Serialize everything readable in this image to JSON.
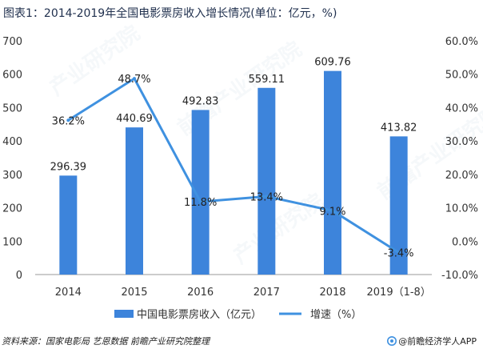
{
  "title": "图表1：2014-2019年全国电影票房收入增长情况(单位：亿元，%)",
  "source": "资料来源：国家电影局 艺恩数据 前瞻产业研究院整理",
  "brand": "@前瞻经济学人APP",
  "colors": {
    "bar": "#3d84db",
    "line": "#3f91e0",
    "axis": "#9a9a9a",
    "text": "#333333"
  },
  "chart_data": {
    "type": "bar",
    "categories": [
      "2014",
      "2015",
      "2016",
      "2017",
      "2018",
      "2019（1-8）"
    ],
    "series": [
      {
        "name": "中国电影票房收入（亿元）",
        "type": "bar",
        "axis": "left",
        "values": [
          296.39,
          440.69,
          492.83,
          559.11,
          609.76,
          413.82
        ],
        "labels": [
          "296.39",
          "440.69",
          "492.83",
          "559.11",
          "609.76",
          "413.82"
        ]
      },
      {
        "name": "增速（%）",
        "type": "line",
        "axis": "right",
        "values": [
          36.2,
          48.7,
          11.8,
          13.4,
          9.1,
          -3.4
        ],
        "labels": [
          "36.2%",
          "48.7%",
          "11.8%",
          "13.4%",
          "9.1%",
          "-3.4%"
        ]
      }
    ],
    "y_left": {
      "ylim": [
        0,
        700
      ],
      "ticks": [
        "0",
        "100",
        "200",
        "300",
        "400",
        "500",
        "600",
        "700"
      ]
    },
    "y_right": {
      "ylim": [
        -10,
        60
      ],
      "ticks": [
        "-10.0%",
        "0.0%",
        "10.0%",
        "20.0%",
        "30.0%",
        "40.0%",
        "50.0%",
        "60.0%"
      ]
    },
    "legend_position": "bottom",
    "grid": false
  }
}
